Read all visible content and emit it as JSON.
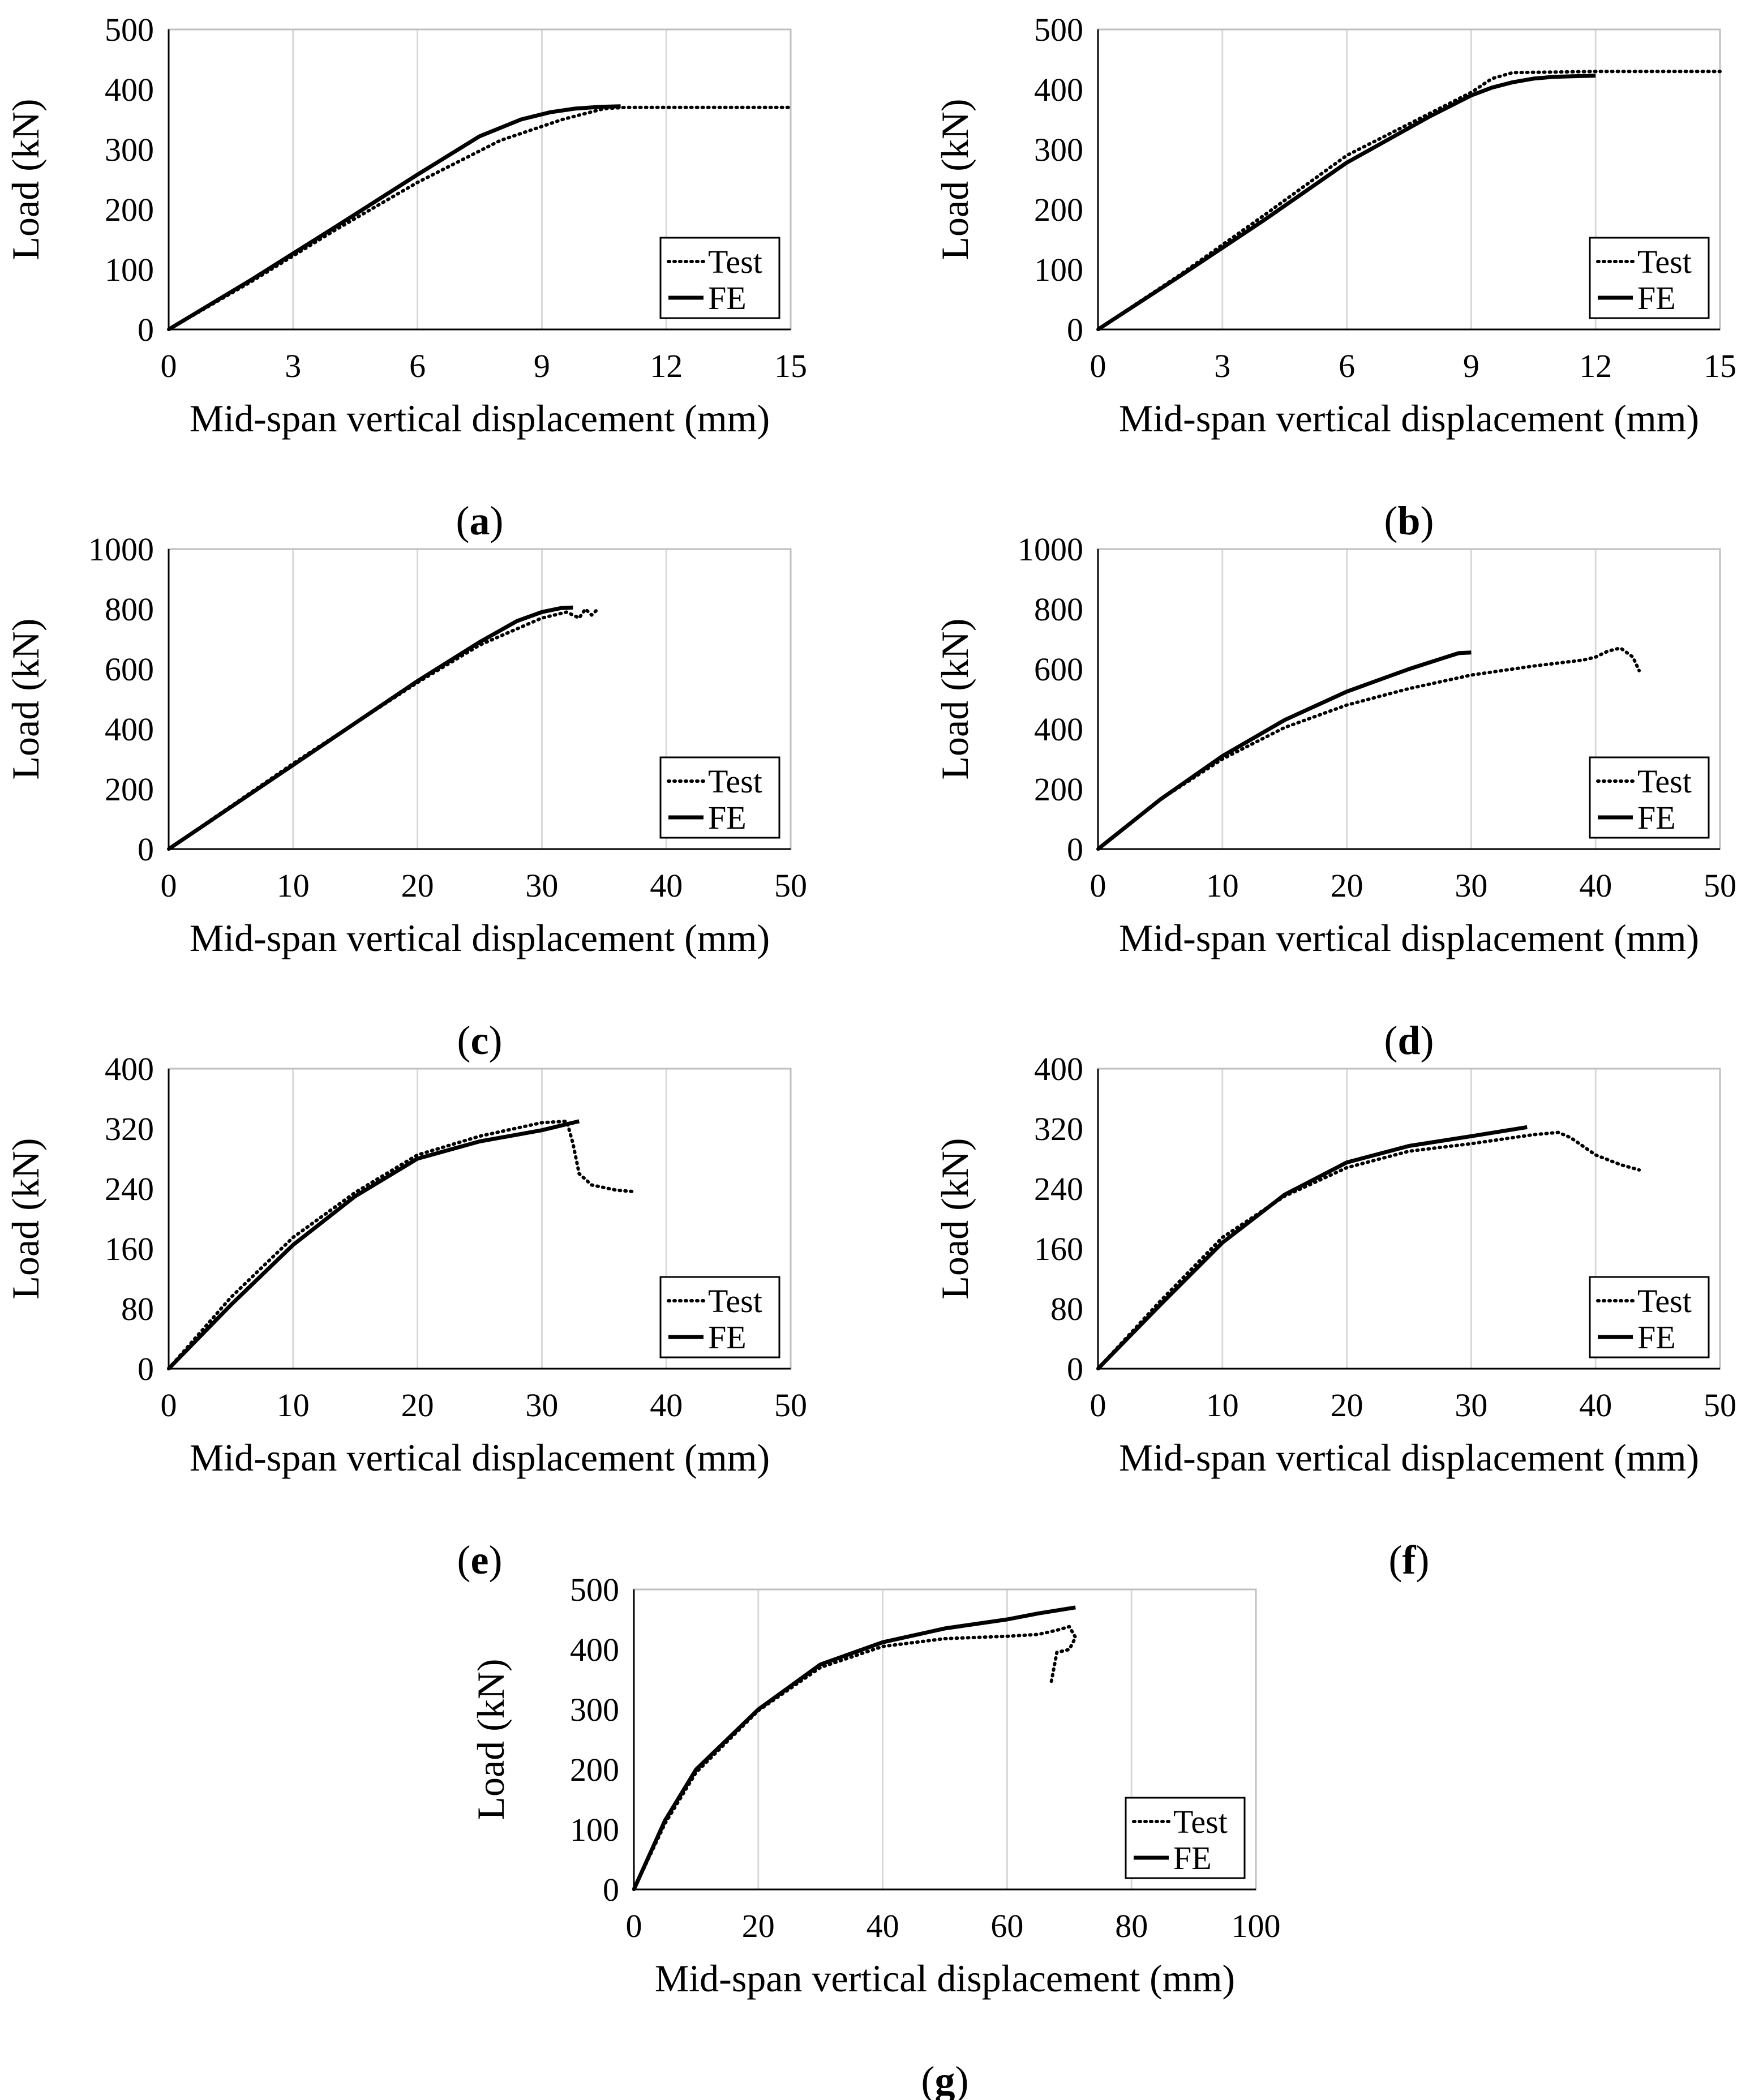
{
  "chart_data": [
    {
      "type": "line",
      "panel_label": "a",
      "xlabel": "Mid-span vertical displacement (mm)",
      "ylabel": "Load (kN)",
      "xlim": [
        0,
        15
      ],
      "ylim": [
        0,
        500
      ],
      "xticks": [
        0,
        3,
        6,
        9,
        12,
        15
      ],
      "yticks": [
        0,
        100,
        200,
        300,
        400,
        500
      ],
      "grid": "vertical",
      "legend_position": "bottom-right",
      "series": [
        {
          "name": "Test",
          "style": "dotted",
          "x": [
            0,
            2,
            4,
            6,
            8,
            9.5,
            10.5,
            11,
            12,
            15
          ],
          "y": [
            0,
            80,
            165,
            245,
            315,
            350,
            368,
            370,
            370,
            370
          ]
        },
        {
          "name": "FE",
          "style": "solid",
          "x": [
            0,
            2,
            4,
            6,
            7.5,
            8.5,
            9.2,
            9.8,
            10.4,
            10.9
          ],
          "y": [
            0,
            83,
            170,
            258,
            322,
            350,
            362,
            368,
            371,
            372
          ]
        }
      ]
    },
    {
      "type": "line",
      "panel_label": "b",
      "xlabel": "Mid-span vertical displacement (mm)",
      "ylabel": "Load (kN)",
      "xlim": [
        0,
        15
      ],
      "ylim": [
        0,
        500
      ],
      "xticks": [
        0,
        3,
        6,
        9,
        12,
        15
      ],
      "yticks": [
        0,
        100,
        200,
        300,
        400,
        500
      ],
      "grid": "vertical",
      "legend_position": "bottom-right",
      "series": [
        {
          "name": "Test",
          "style": "dotted",
          "x": [
            0,
            2,
            4,
            6,
            8,
            9,
            9.5,
            10,
            12,
            15
          ],
          "y": [
            0,
            92,
            190,
            290,
            360,
            395,
            418,
            428,
            430,
            430
          ]
        },
        {
          "name": "FE",
          "style": "solid",
          "x": [
            0,
            2,
            4,
            6,
            8,
            9,
            9.5,
            10,
            10.5,
            11,
            12
          ],
          "y": [
            0,
            90,
            182,
            278,
            355,
            390,
            403,
            412,
            418,
            421,
            423
          ]
        }
      ]
    },
    {
      "type": "line",
      "panel_label": "c",
      "xlabel": "Mid-span vertical displacement (mm)",
      "ylabel": "Load (kN)",
      "xlim": [
        0,
        50
      ],
      "ylim": [
        0,
        1000
      ],
      "xticks": [
        0,
        10,
        20,
        30,
        40,
        50
      ],
      "yticks": [
        0,
        200,
        400,
        600,
        800,
        1000
      ],
      "grid": "vertical",
      "legend_position": "bottom-right",
      "series": [
        {
          "name": "Test",
          "style": "dotted",
          "x": [
            0,
            10,
            20,
            25,
            30,
            32,
            33,
            33.5,
            34,
            34.5
          ],
          "y": [
            0,
            285,
            555,
            680,
            770,
            790,
            770,
            800,
            780,
            800
          ]
        },
        {
          "name": "FE",
          "style": "solid",
          "x": [
            0,
            10,
            20,
            25,
            28,
            30,
            31.5,
            32.5
          ],
          "y": [
            0,
            280,
            560,
            690,
            760,
            790,
            803,
            805
          ]
        }
      ]
    },
    {
      "type": "line",
      "panel_label": "d",
      "xlabel": "Mid-span vertical displacement (mm)",
      "ylabel": "Load (kN)",
      "xlim": [
        0,
        50
      ],
      "ylim": [
        0,
        1000
      ],
      "xticks": [
        0,
        10,
        20,
        30,
        40,
        50
      ],
      "yticks": [
        0,
        200,
        400,
        600,
        800,
        1000
      ],
      "grid": "vertical",
      "legend_position": "bottom-right",
      "series": [
        {
          "name": "Test",
          "style": "dotted",
          "x": [
            0,
            5,
            10,
            15,
            20,
            25,
            30,
            35,
            39,
            40,
            41,
            42,
            43,
            43.5
          ],
          "y": [
            0,
            165,
            300,
            405,
            480,
            535,
            580,
            610,
            630,
            640,
            660,
            670,
            640,
            595
          ]
        },
        {
          "name": "FE",
          "style": "solid",
          "x": [
            0,
            5,
            10,
            15,
            20,
            25,
            28,
            29,
            30
          ],
          "y": [
            0,
            165,
            310,
            430,
            525,
            600,
            640,
            653,
            655
          ]
        }
      ]
    },
    {
      "type": "line",
      "panel_label": "e",
      "xlabel": "Mid-span vertical displacement (mm)",
      "ylabel": "Load (kN)",
      "xlim": [
        0,
        50
      ],
      "ylim": [
        0,
        400
      ],
      "xticks": [
        0,
        10,
        20,
        30,
        40,
        50
      ],
      "yticks": [
        0,
        80,
        160,
        240,
        320,
        400
      ],
      "grid": "vertical",
      "legend_position": "bottom-right",
      "series": [
        {
          "name": "Test",
          "style": "dotted",
          "x": [
            0,
            5,
            10,
            15,
            20,
            25,
            30,
            32,
            32.5,
            33,
            34,
            36,
            37.5
          ],
          "y": [
            0,
            95,
            175,
            235,
            285,
            310,
            328,
            330,
            300,
            260,
            245,
            238,
            236
          ]
        },
        {
          "name": "FE",
          "style": "solid",
          "x": [
            0,
            5,
            10,
            15,
            20,
            25,
            30,
            33
          ],
          "y": [
            0,
            85,
            165,
            230,
            280,
            303,
            318,
            330
          ]
        }
      ]
    },
    {
      "type": "line",
      "panel_label": "f",
      "xlabel": "Mid-span vertical displacement (mm)",
      "ylabel": "Load (kN)",
      "xlim": [
        0,
        50
      ],
      "ylim": [
        0,
        400
      ],
      "xticks": [
        0,
        10,
        20,
        30,
        40,
        50
      ],
      "yticks": [
        0,
        80,
        160,
        240,
        320,
        400
      ],
      "grid": "vertical",
      "legend_position": "bottom-right",
      "series": [
        {
          "name": "Test",
          "style": "dotted",
          "x": [
            0,
            5,
            10,
            15,
            20,
            25,
            30,
            35,
            37,
            38,
            40,
            42,
            43.5
          ],
          "y": [
            0,
            90,
            175,
            230,
            268,
            290,
            300,
            312,
            315,
            308,
            285,
            272,
            265
          ]
        },
        {
          "name": "FE",
          "style": "solid",
          "x": [
            0,
            5,
            10,
            15,
            20,
            25,
            30,
            34.5
          ],
          "y": [
            0,
            85,
            168,
            232,
            275,
            297,
            310,
            322
          ]
        }
      ]
    },
    {
      "type": "line",
      "panel_label": "g",
      "xlabel": "Mid-span vertical displacement (mm)",
      "ylabel": "Load (kN)",
      "xlim": [
        0,
        100
      ],
      "ylim": [
        0,
        500
      ],
      "xticks": [
        0,
        20,
        40,
        60,
        80,
        100
      ],
      "yticks": [
        0,
        100,
        200,
        300,
        400,
        500
      ],
      "grid": "vertical",
      "legend_position": "bottom-right",
      "series": [
        {
          "name": "Test",
          "style": "dotted",
          "x": [
            0,
            5,
            10,
            20,
            30,
            40,
            50,
            60,
            65,
            68,
            70,
            71,
            70,
            68,
            67
          ],
          "y": [
            0,
            110,
            195,
            298,
            370,
            405,
            418,
            422,
            425,
            432,
            438,
            420,
            400,
            395,
            340
          ]
        },
        {
          "name": "FE",
          "style": "solid",
          "x": [
            0,
            5,
            10,
            20,
            30,
            40,
            50,
            60,
            65,
            71
          ],
          "y": [
            0,
            115,
            200,
            300,
            375,
            412,
            435,
            450,
            460,
            470
          ]
        }
      ]
    }
  ]
}
